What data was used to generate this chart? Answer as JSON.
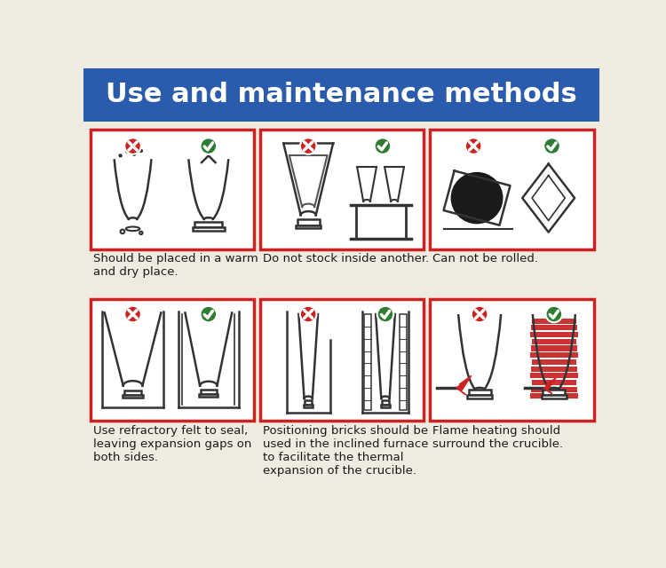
{
  "title": "Use and maintenance methods",
  "title_bg_color": "#2B5BAD",
  "title_text_color": "#FFFFFF",
  "bg_color": "#F0EBE0",
  "box_border_color": "#CC2222",
  "check_color": "#2E7D32",
  "cross_color": "#CC2222",
  "text_color": "#1a1a1a",
  "captions": [
    "Should be placed in a warm\nand dry place.",
    "Do not stock inside another.",
    "Can not be rolled.",
    "Use refractory felt to seal,\nleaving expansion gaps on\nboth sides.",
    "Positioning bricks should be\nused in the inclined furnace\nto facilitate the thermal\nexpansion of the crucible.",
    "Flame heating should\nsurround the crucible."
  ]
}
